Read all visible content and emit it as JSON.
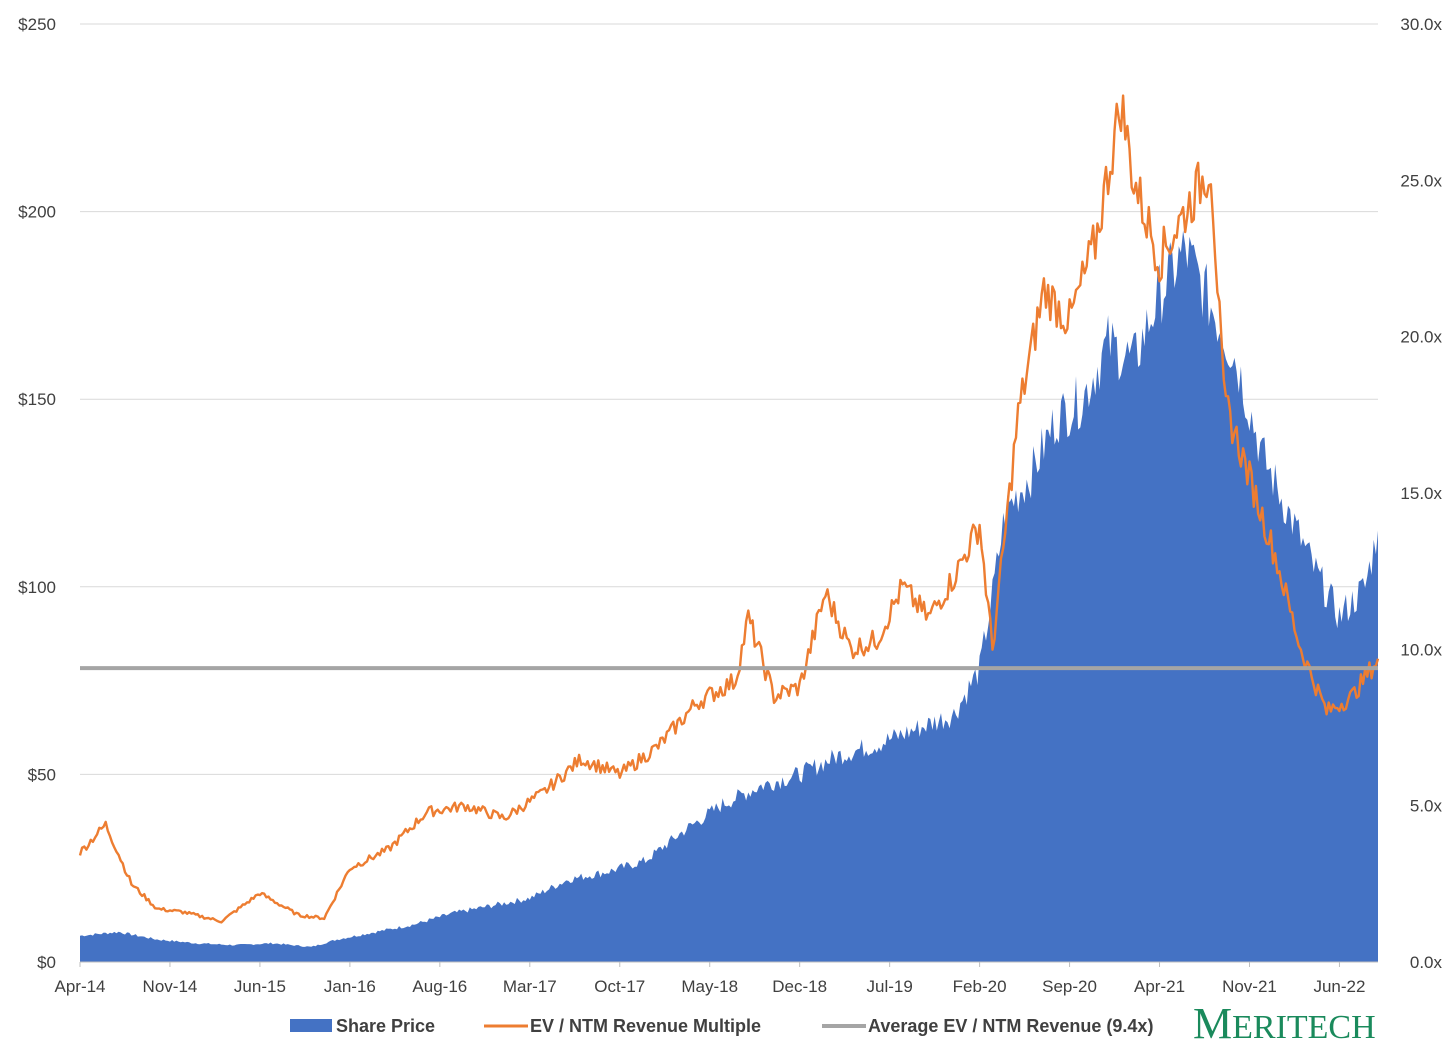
{
  "chart_data": {
    "type": "area",
    "title": "",
    "xlabel": "",
    "ylabel": "",
    "y_left": {
      "min": 0,
      "max": 250,
      "ticks": [
        0,
        50,
        100,
        150,
        200,
        250
      ],
      "tick_labels": [
        "$0",
        "$50",
        "$100",
        "$150",
        "$200",
        "$250"
      ]
    },
    "y_right": {
      "min": 0,
      "max": 30,
      "ticks": [
        0,
        5,
        10,
        15,
        20,
        25,
        30
      ],
      "tick_labels": [
        "0.0x",
        "5.0x",
        "10.0x",
        "15.0x",
        "20.0x",
        "25.0x",
        "30.0x"
      ]
    },
    "x_tick_labels": [
      "Apr-14",
      "Nov-14",
      "Jun-15",
      "Jan-16",
      "Aug-16",
      "Mar-17",
      "Oct-17",
      "May-18",
      "Dec-18",
      "Jul-19",
      "Feb-20",
      "Sep-20",
      "Apr-21",
      "Nov-21",
      "Jun-22"
    ],
    "x_start": "Apr-14",
    "x_end": "Sep-22",
    "grid": "horizontal",
    "legend_position": "bottom",
    "colors": {
      "share_price": "#4472C4",
      "ev_multiple": "#ED7D31",
      "average": "#A5A5A5",
      "grid": "#D9D9D9",
      "logo": "#1a8a5c"
    },
    "series": [
      {
        "name": "Share Price",
        "type": "area",
        "axis": "left",
        "x": [
          "Apr-14",
          "Jul-14",
          "Oct-14",
          "Jan-15",
          "Apr-15",
          "Jul-15",
          "Oct-15",
          "Dec-15",
          "Mar-16",
          "Jun-16",
          "Sep-16",
          "Dec-16",
          "Mar-17",
          "Jun-17",
          "Sep-17",
          "Dec-17",
          "Mar-18",
          "Jun-18",
          "Sep-18",
          "Dec-18",
          "Mar-19",
          "Jun-19",
          "Sep-19",
          "Dec-19",
          "Feb-20",
          "Mar-20",
          "Apr-20",
          "Jun-20",
          "Aug-20",
          "Oct-20",
          "Dec-20",
          "Feb-21",
          "Apr-21",
          "Jun-21",
          "Aug-21",
          "Oct-21",
          "Dec-21",
          "Feb-22",
          "Apr-22",
          "Jun-22",
          "Aug-22",
          "Sep-22"
        ],
        "values": [
          7,
          8,
          6,
          5,
          4.5,
          5,
          4,
          6,
          8,
          10,
          13,
          15,
          17,
          22,
          24,
          27,
          35,
          42,
          47,
          50,
          55,
          58,
          62,
          66,
          78,
          98,
          120,
          130,
          145,
          150,
          165,
          160,
          178,
          190,
          175,
          160,
          135,
          120,
          105,
          92,
          100,
          115
        ]
      },
      {
        "name": "EV / NTM Revenue Multiple",
        "type": "line",
        "axis": "right",
        "x": [
          "Apr-14",
          "Jun-14",
          "Aug-14",
          "Oct-14",
          "Dec-14",
          "Mar-15",
          "Jun-15",
          "Sep-15",
          "Nov-15",
          "Jan-16",
          "Apr-16",
          "Jul-16",
          "Oct-16",
          "Jan-17",
          "Apr-17",
          "Jul-17",
          "Oct-17",
          "Jan-18",
          "Apr-18",
          "Jul-18",
          "Aug-18",
          "Oct-18",
          "Dec-18",
          "Feb-19",
          "Apr-19",
          "Jun-19",
          "Aug-19",
          "Oct-19",
          "Dec-19",
          "Feb-20",
          "Mar-20",
          "May-20",
          "Jul-20",
          "Sep-20",
          "Nov-20",
          "Jan-21",
          "Feb-21",
          "Apr-21",
          "Jun-21",
          "Aug-21",
          "Sep-21",
          "Nov-21",
          "Jan-22",
          "Mar-22",
          "May-22",
          "Jul-22",
          "Sep-22"
        ],
        "values": [
          3.5,
          4.4,
          2.5,
          1.7,
          1.6,
          1.3,
          2.2,
          1.5,
          1.4,
          3.0,
          3.6,
          4.8,
          5.0,
          4.6,
          5.4,
          6.5,
          6.0,
          6.9,
          8.3,
          9.0,
          11.0,
          8.5,
          8.8,
          11.8,
          10.0,
          10.3,
          12.0,
          11.0,
          12.3,
          14.0,
          10.0,
          17.5,
          21.5,
          20.5,
          23.0,
          27.5,
          25.0,
          22.5,
          24.0,
          25.5,
          18.0,
          15.5,
          13.0,
          10.0,
          8.0,
          8.5,
          9.7
        ]
      },
      {
        "name": "Average EV / NTM Revenue (9.4x)",
        "type": "line",
        "axis": "right",
        "constant": 9.4
      }
    ]
  },
  "legend": {
    "items": [
      {
        "label": "Share Price",
        "color": "#4472C4"
      },
      {
        "label": "EV / NTM Revenue Multiple",
        "color": "#ED7D31"
      },
      {
        "label": "Average EV / NTM Revenue (9.4x)",
        "color": "#A5A5A5"
      }
    ]
  },
  "logo": {
    "text": "MERITECH"
  }
}
